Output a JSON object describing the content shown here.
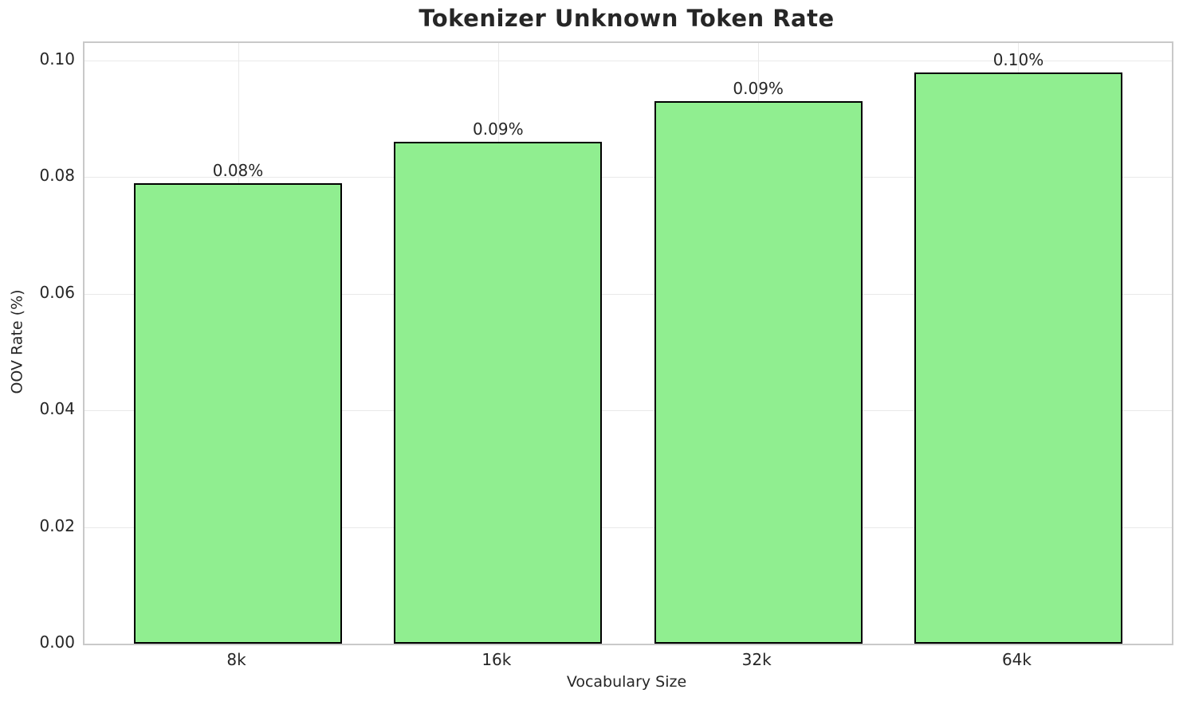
{
  "chart_data": {
    "type": "bar",
    "title": "Tokenizer Unknown Token Rate",
    "xlabel": "Vocabulary Size",
    "ylabel": "OOV Rate (%)",
    "categories": [
      "8k",
      "16k",
      "32k",
      "64k"
    ],
    "values": [
      0.079,
      0.086,
      0.093,
      0.098
    ],
    "bar_labels": [
      "0.08%",
      "0.09%",
      "0.09%",
      "0.10%"
    ],
    "ytick_labels": [
      "0.00",
      "0.02",
      "0.04",
      "0.06",
      "0.08",
      "0.10"
    ],
    "yticks": [
      0.0,
      0.02,
      0.04,
      0.06,
      0.08,
      0.1
    ],
    "ylim": [
      0,
      0.103
    ],
    "grid": true,
    "legend_position": "none",
    "colors": {
      "bar_fill": "#90EE90",
      "bar_edge": "#000000",
      "grid_line": "#e9e9e9",
      "spine": "#c9c9c9",
      "text": "#262626",
      "background": "#ffffff"
    }
  }
}
